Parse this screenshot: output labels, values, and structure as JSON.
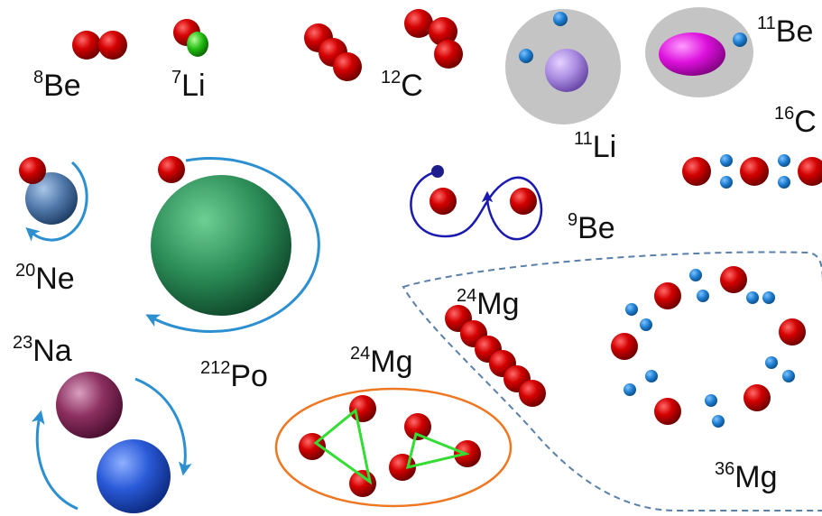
{
  "labels": {
    "be8": {
      "mass": "8",
      "symbol": "Be"
    },
    "li7": {
      "mass": "7",
      "symbol": "Li"
    },
    "c12": {
      "mass": "12",
      "symbol": "C"
    },
    "li11": {
      "mass": "11",
      "symbol": "Li"
    },
    "be11": {
      "mass": "11",
      "symbol": "Be"
    },
    "c16": {
      "mass": "16",
      "symbol": "C"
    },
    "ne20": {
      "mass": "20",
      "symbol": "Ne"
    },
    "po212": {
      "mass": "212",
      "symbol": "Po"
    },
    "be9": {
      "mass": "9",
      "symbol": "Be"
    },
    "mg24_chain": {
      "mass": "24",
      "symbol": "Mg"
    },
    "mg24_triangle": {
      "mass": "24",
      "symbol": "Mg"
    },
    "na23": {
      "mass": "23",
      "symbol": "Na"
    },
    "mg36": {
      "mass": "36",
      "symbol": "Mg"
    }
  },
  "colors": {
    "alpha": "#cc0000",
    "neutron": "#1f7fd1",
    "halo": "#c4c4c4",
    "arrow": "#2b8fd0",
    "be9_path": "#1a1ab0",
    "triangle": "#33dd33",
    "ellipse": "#ee7722",
    "dashed_region": "#5a7fa8"
  }
}
